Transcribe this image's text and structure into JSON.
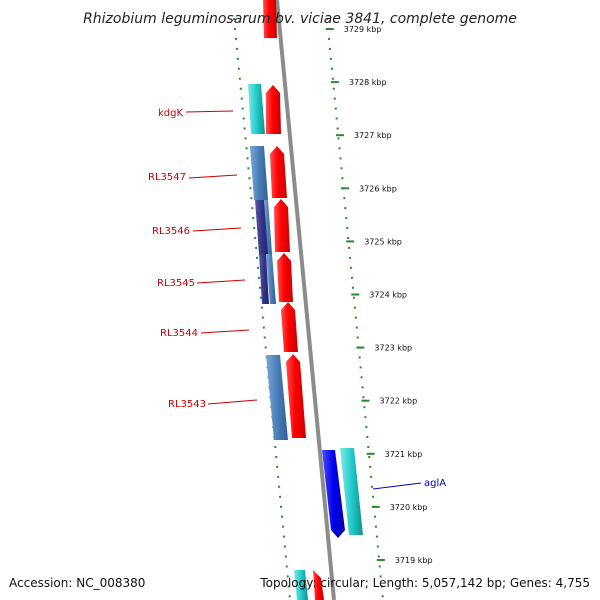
{
  "title": "Rhizobium leguminosarum bv. viciae 3841, complete genome",
  "footer": {
    "accession": "Accession: NC_008380",
    "topology": "Topology: circular; Length: 5,057,142 bp; Genes: 4,755"
  },
  "colors": {
    "backbone": "#8c8c8c",
    "dots": "#2a8a2a",
    "label_red": "#cc0000",
    "label_blue": "#0000cc"
  },
  "ticks": [
    "3729 kbp",
    "3728 kbp",
    "3727 kbp",
    "3726 kbp",
    "3725 kbp",
    "3724 kbp",
    "3723 kbp",
    "3722 kbp",
    "3721 kbp",
    "3720 kbp",
    "3719 kbp"
  ],
  "gene_labels": [
    {
      "text": "kdgK",
      "color": "#cc0000"
    },
    {
      "text": "RL3547",
      "color": "#cc0000"
    },
    {
      "text": "RL3546",
      "color": "#cc0000"
    },
    {
      "text": "RL3545",
      "color": "#cc0000"
    },
    {
      "text": "RL3544",
      "color": "#cc0000"
    },
    {
      "text": "RL3543",
      "color": "#cc0000"
    },
    {
      "text": "aglA",
      "color": "#0000cc"
    }
  ]
}
